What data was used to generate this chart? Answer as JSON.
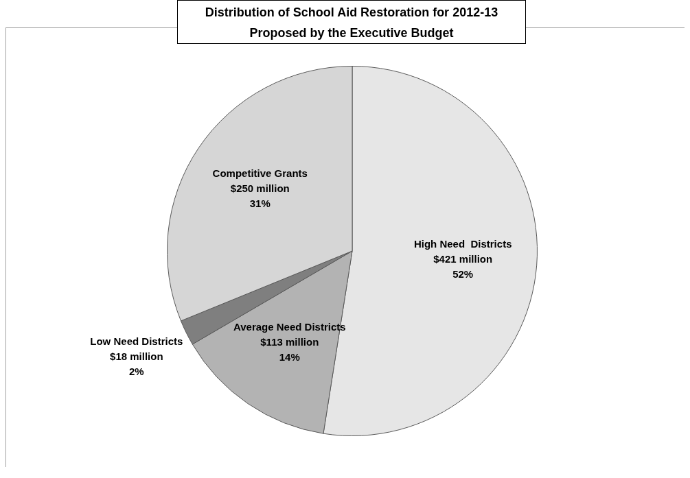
{
  "chart_data": {
    "type": "pie",
    "title": "Distribution of School Aid Restoration for 2012-13",
    "subtitle": "Proposed by the Executive Budget",
    "categories": [
      "High Need  Districts",
      "Average Need Districts",
      "Low Need Districts",
      "Competitive Grants"
    ],
    "values": [
      421,
      113,
      18,
      250
    ],
    "value_labels": [
      "$421 million",
      "$113 million",
      "$18 million",
      "$250 million"
    ],
    "annotations": [
      {
        "text": "52%",
        "x": "High Need  Districts"
      },
      {
        "text": "14%",
        "x": "Average Need Districts"
      },
      {
        "text": "2%",
        "x": "Low Need Districts"
      },
      {
        "text": "31%",
        "x": "Competitive Grants"
      }
    ],
    "colors": [
      "#e6e6e6",
      "#b3b3b3",
      "#7f7f7f",
      "#d6d6d6"
    ]
  }
}
